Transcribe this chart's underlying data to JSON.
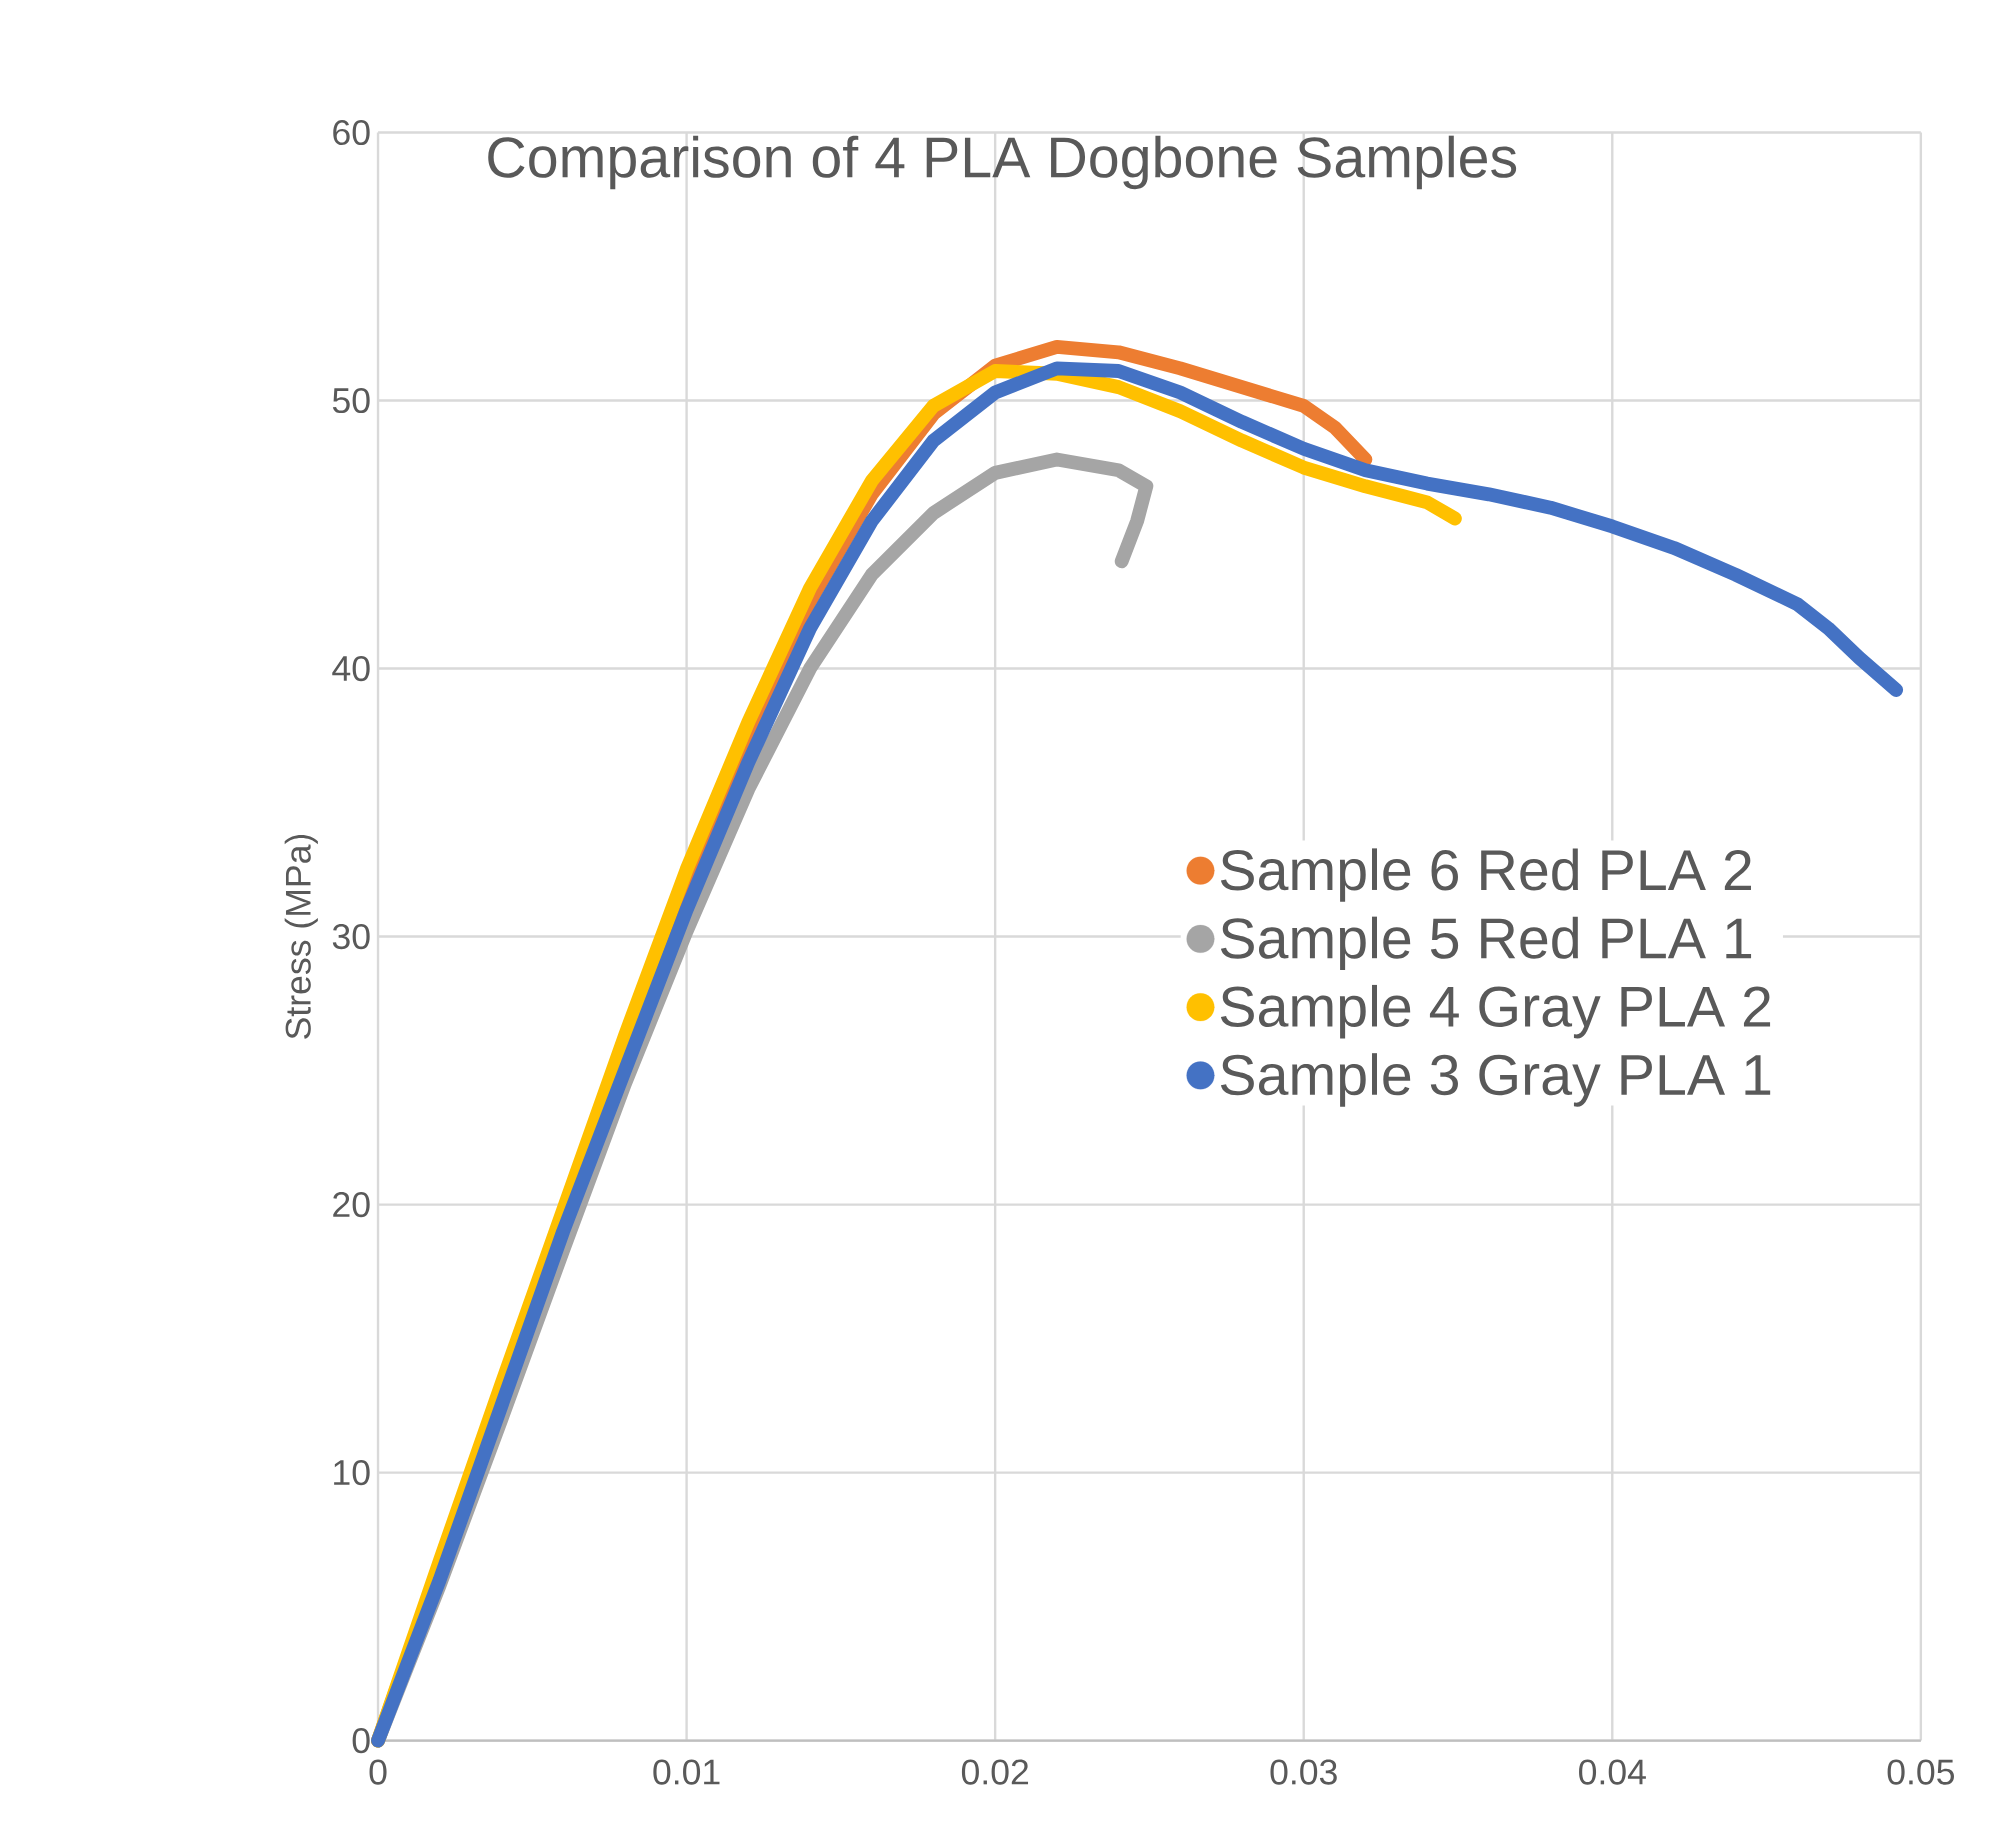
{
  "chart_data": {
    "type": "line",
    "title": "Comparison of 4 PLA Dogbone Samples",
    "ylabel": "Stress (MPa)",
    "xlim": [
      0,
      0.05
    ],
    "ylim": [
      0,
      60
    ],
    "xticks": [
      0,
      0.01,
      0.02,
      0.03,
      0.04,
      0.05
    ],
    "yticks": [
      0,
      10,
      20,
      30,
      40,
      50,
      60
    ],
    "grid": true,
    "legend": "right",
    "series": [
      {
        "name": "Sample 6  Red PLA 2",
        "color": "#ed7d31",
        "x": [
          0,
          0.002,
          0.004,
          0.006,
          0.008,
          0.01,
          0.012,
          0.014,
          0.016,
          0.018,
          0.02,
          0.022,
          0.024,
          0.026,
          0.028,
          0.03,
          0.031,
          0.032
        ],
        "values": [
          0,
          6.5,
          13,
          19.5,
          26,
          32,
          37.5,
          42.5,
          46.5,
          49.5,
          51.3,
          52,
          51.8,
          51.2,
          50.5,
          49.8,
          49,
          47.8
        ]
      },
      {
        "name": "Sample 5 Red PLA  1",
        "color": "#a5a5a5",
        "x": [
          0,
          0.002,
          0.004,
          0.006,
          0.008,
          0.01,
          0.012,
          0.014,
          0.016,
          0.018,
          0.02,
          0.022,
          0.024,
          0.0249,
          0.0246,
          0.0241
        ],
        "values": [
          0,
          5.8,
          12,
          18.3,
          24.5,
          30.2,
          35.5,
          40,
          43.5,
          45.8,
          47.3,
          47.8,
          47.4,
          46.8,
          45.5,
          44
        ]
      },
      {
        "name": "Sample 4 Gray PLA 2",
        "color": "#ffc000",
        "x": [
          0,
          0.002,
          0.004,
          0.006,
          0.008,
          0.01,
          0.012,
          0.014,
          0.016,
          0.018,
          0.02,
          0.022,
          0.024,
          0.026,
          0.028,
          0.03,
          0.032,
          0.034,
          0.0349
        ],
        "values": [
          0,
          6.7,
          13.3,
          19.8,
          26.3,
          32.5,
          38,
          43,
          47,
          49.8,
          51.1,
          51,
          50.5,
          49.6,
          48.5,
          47.5,
          46.8,
          46.2,
          45.6
        ]
      },
      {
        "name": "Sample 3 Gray PLA 1",
        "color": "#4472c4",
        "x": [
          0,
          0.002,
          0.004,
          0.006,
          0.008,
          0.01,
          0.012,
          0.014,
          0.016,
          0.018,
          0.02,
          0.022,
          0.024,
          0.026,
          0.028,
          0.03,
          0.032,
          0.034,
          0.036,
          0.038,
          0.04,
          0.042,
          0.044,
          0.046,
          0.047,
          0.048,
          0.0492
        ],
        "values": [
          0,
          6,
          12.5,
          19,
          25,
          31,
          36.5,
          41.5,
          45.5,
          48.5,
          50.3,
          51.2,
          51.1,
          50.3,
          49.2,
          48.2,
          47.4,
          46.9,
          46.5,
          46,
          45.3,
          44.5,
          43.5,
          42.4,
          41.5,
          40.4,
          39.2
        ]
      }
    ]
  }
}
